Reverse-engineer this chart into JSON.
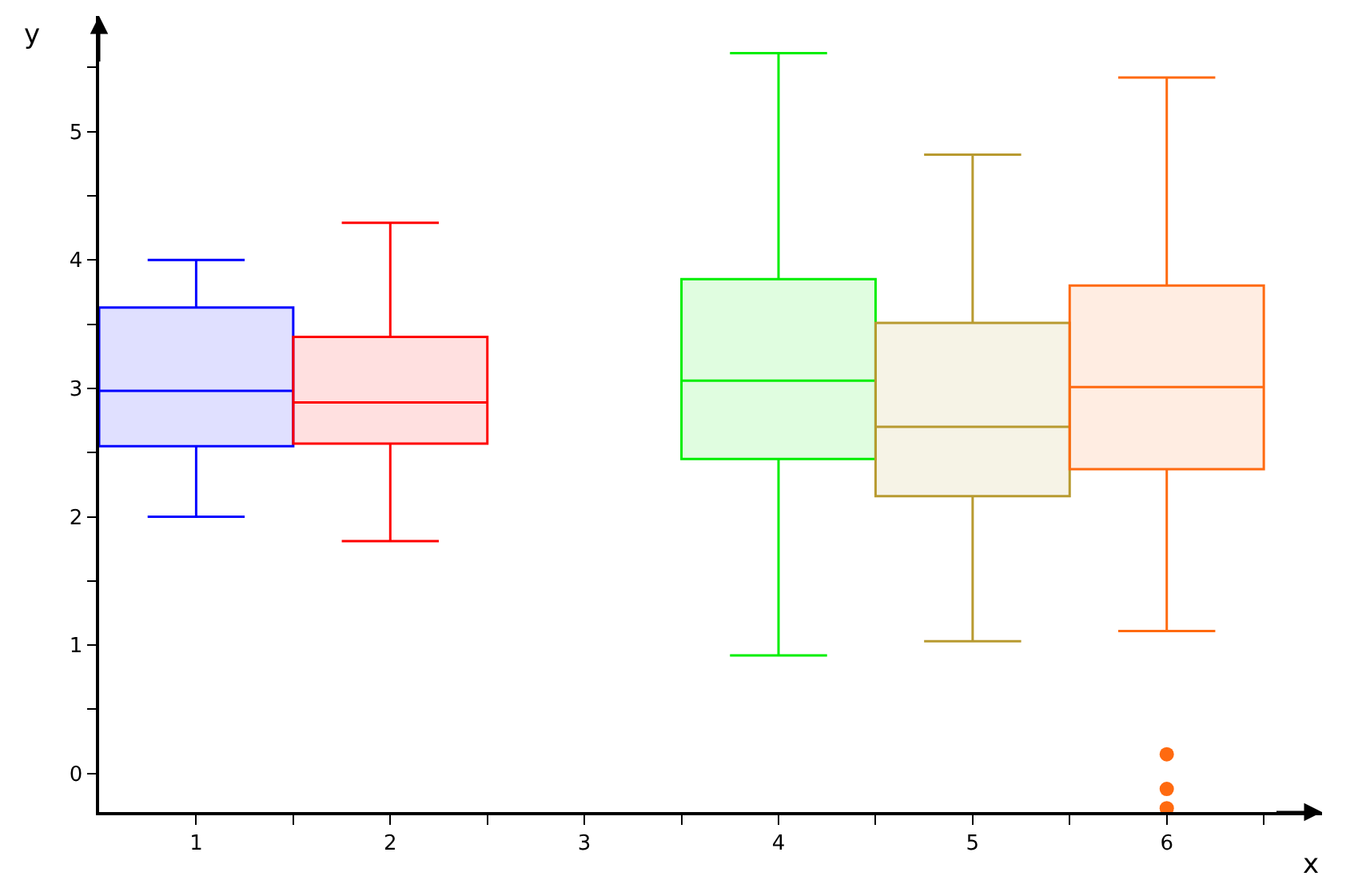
{
  "chart_data": {
    "type": "box",
    "xlabel": "x",
    "ylabel": "y",
    "x": [
      1,
      2,
      4,
      5,
      6
    ],
    "colors": [
      "#0000ff",
      "#ff0000",
      "#00ee00",
      "#b89a30",
      "#ff6a10"
    ],
    "boxes": [
      {
        "low": 2.0,
        "q1": 2.55,
        "median": 2.98,
        "q3": 3.63,
        "high": 4.0
      },
      {
        "low": 1.81,
        "q1": 2.57,
        "median": 2.89,
        "q3": 3.4,
        "high": 4.29
      },
      {
        "low": 0.92,
        "q1": 2.45,
        "median": 3.06,
        "q3": 3.85,
        "high": 5.61
      },
      {
        "low": 1.03,
        "q1": 2.16,
        "median": 2.7,
        "q3": 3.51,
        "high": 4.82
      },
      {
        "low": 1.11,
        "q1": 2.37,
        "median": 3.01,
        "q3": 3.8,
        "high": 5.42,
        "outliers": [
          0.15,
          -0.12,
          -0.27
        ]
      }
    ],
    "xlim": [
      0.5,
      6.8
    ],
    "ylim": [
      -0.3,
      5.9
    ],
    "xticks": [
      1,
      {
        "value": 1.5,
        "label": null
      },
      2,
      {
        "value": 2.5,
        "label": null
      },
      3,
      {
        "value": 3.5,
        "label": null
      },
      4,
      {
        "value": 4.5,
        "label": null
      },
      5,
      {
        "value": 5.5,
        "label": null
      },
      6,
      {
        "value": 6.5,
        "label": null
      }
    ],
    "yticks": [
      0,
      {
        "value": 0.5,
        "label": null
      },
      1,
      {
        "value": 1.5,
        "label": null
      },
      2,
      {
        "value": 2.5,
        "label": null
      },
      3,
      {
        "value": 3.5,
        "label": null
      },
      4,
      {
        "value": 4.5,
        "label": null
      },
      5,
      {
        "value": 5.5,
        "label": null
      }
    ],
    "grid": false
  }
}
